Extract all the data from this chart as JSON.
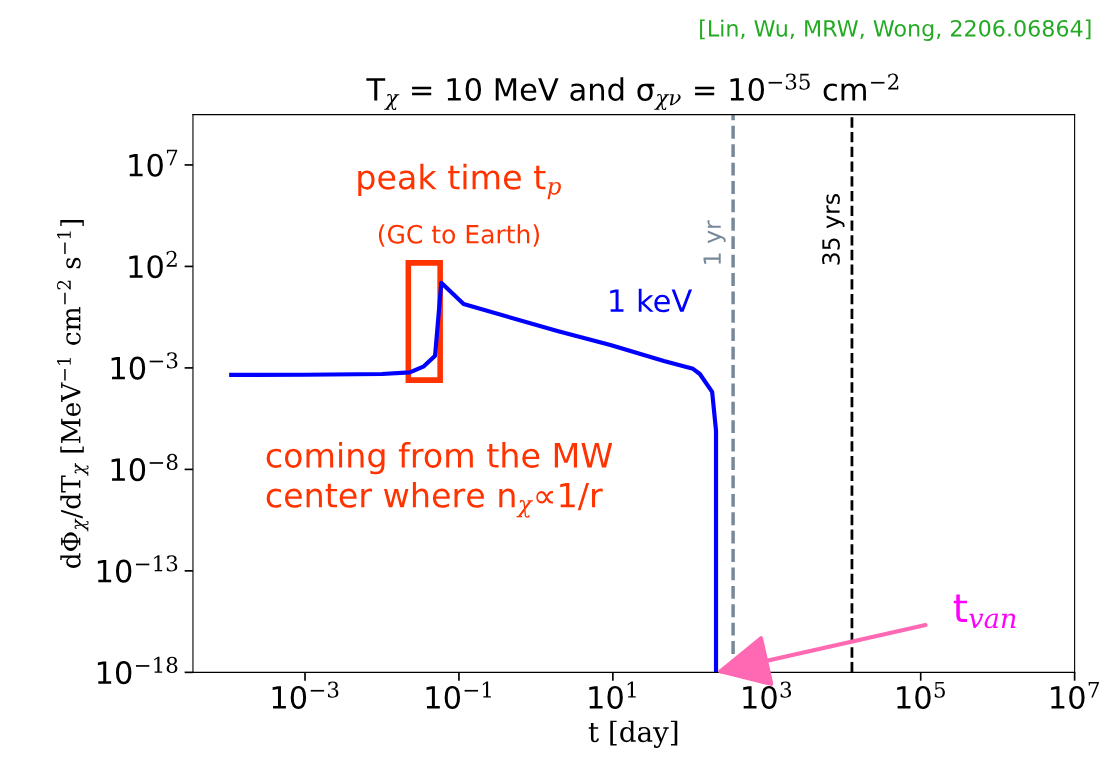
{
  "chart_data": {
    "type": "line",
    "title": "T$_{χ}$ = 10 MeV and σ$_{χν}$ = 10$^{−35}$ cm$^{−2}$",
    "xlabel": "t [day]",
    "ylabel": "dΦ$_{χ}$/dT$_{χ}$ [MeV$^{−1}$ cm$^{−2}$ s$^{−1}$]",
    "log": "xy",
    "xlim": [
      3.5e-05,
      10000000.0
    ],
    "ylim": [
      1e-18,
      3000000000.0
    ],
    "xticks": [
      {
        "value": 0.001,
        "label": "10$^{−3}$"
      },
      {
        "value": 0.1,
        "label": "10$^{−1}$"
      },
      {
        "value": 10,
        "label": "10$^{1}$"
      },
      {
        "value": 1000,
        "label": "10$^{3}$"
      },
      {
        "value": 100000,
        "label": "10$^{5}$"
      },
      {
        "value": 10000000,
        "label": "10$^{7}$"
      }
    ],
    "yticks": [
      {
        "value": 1e-18,
        "label": "10$^{−18}$"
      },
      {
        "value": 1e-13,
        "label": "10$^{−13}$"
      },
      {
        "value": 1e-08,
        "label": "10$^{−8}$"
      },
      {
        "value": 0.001,
        "label": "10$^{−3}$"
      },
      {
        "value": 100,
        "label": "10$^{2}$"
      },
      {
        "value": 10000000,
        "label": "10$^{7}$"
      }
    ],
    "grid": false,
    "legend": false,
    "series": [
      {
        "name": "1 keV",
        "color": "#0000ff",
        "x": [
          0.00011,
          0.001,
          0.01,
          0.023,
          0.035,
          0.049,
          0.059,
          0.115,
          1.9,
          9.3,
          46,
          110,
          135,
          195,
          219,
          219
        ],
        "values": [
          0.00045,
          0.00046,
          0.0005,
          0.0006,
          0.0012,
          0.004,
          15.5,
          1.4,
          0.066,
          0.0135,
          0.0022,
          0.0009,
          0.0005,
          6.6e-05,
          8e-07,
          1e-18
        ]
      }
    ],
    "ref_lines": [
      {
        "axis": "x",
        "value": 365,
        "label": "1 yr",
        "color": "#778899",
        "line_style": "dashed"
      },
      {
        "axis": "x",
        "value": 12784,
        "label": "35 yrs",
        "color": "#000000",
        "line_style": "dashed"
      }
    ],
    "annotations": [
      "[Lin, Wu, MRW, Wong, 2206.06864]",
      "peak time t$_{p}$",
      "(GC to Earth)",
      "coming from the MW\ncenter where n$_{χ}$∝1/r",
      {
        "text": "t$_{van}$",
        "x": 219,
        "y": 1e-18
      }
    ]
  }
}
